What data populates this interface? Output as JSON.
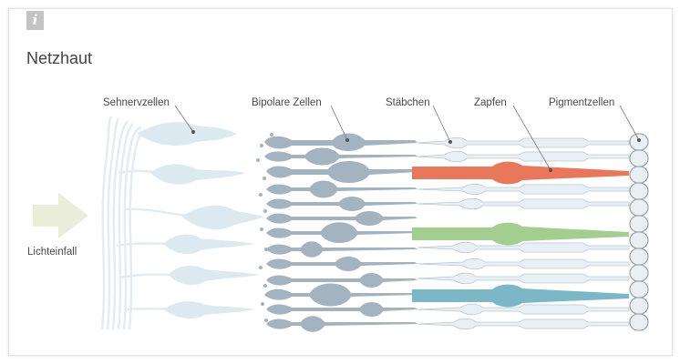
{
  "info_icon": {
    "glyph": "i",
    "name": "info-icon"
  },
  "title": "Netzhaut",
  "labels": {
    "sehnervzellen": "Sehnervzellen",
    "bipolare": "Bipolare Zellen",
    "staebchen": "Stäbchen",
    "zapfen": "Zapfen",
    "pigment": "Pigmentzellen",
    "licht": "Lichteinfall"
  },
  "colors": {
    "ganglion": "#dde9f1",
    "nerve_fiber": "#e6eff5",
    "bipolar": "#a4b3c0",
    "rod": "#e9f0f5",
    "rod_outline": "#b8c7d2",
    "cone_red": "#e8775b",
    "cone_green": "#a4ce8f",
    "cone_blue": "#7cb7c7",
    "pigment": "#e9eff3",
    "arrow": "#eaedd9",
    "leader": "#777777"
  },
  "cones": [
    {
      "color": "red"
    },
    {
      "color": "green"
    },
    {
      "color": "blue"
    }
  ]
}
